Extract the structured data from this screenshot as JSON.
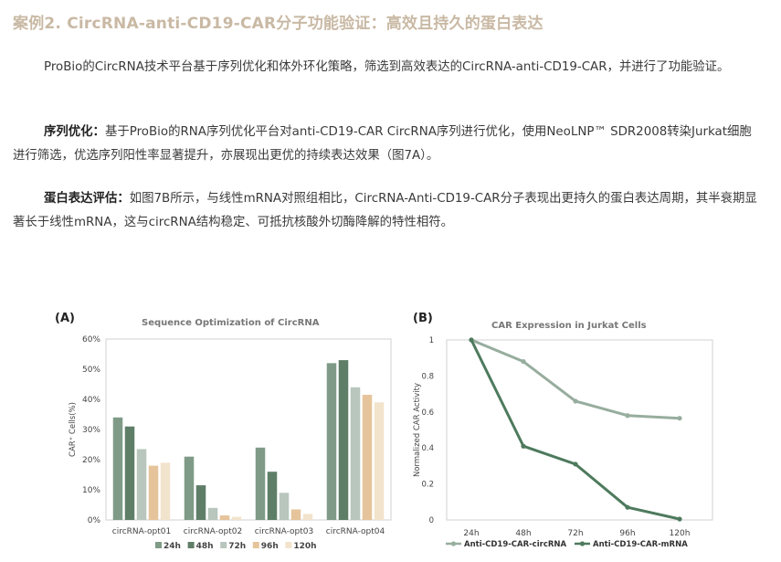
{
  "title": "案例2. CircRNA-anti-CD19-CAR分子功能验证：高效且持久的蛋白表达",
  "paragraphs": {
    "intro": "ProBio的CircRNA技术平台基于序列优化和体外环化策略，筛选到高效表达的CircRNA-anti-CD19-CAR，并进行了功能验证。",
    "seq_label": "序列优化：",
    "seq_text": "基于ProBio的RNA序列优化平台对anti-CD19-CAR CircRNA序列进行优化，使用NeoLNP™ SDR2008转染Jurkat细胞进行筛选，优选序列阳性率显著提升，亦展现出更优的持续表达效果（图7A）。",
    "expr_label": "蛋白表达评估：",
    "expr_text": "如图7B所示，与线性mRNA对照组相比，CircRNA-Anti-CD19-CAR分子表现出更持久的蛋白表达周期，其半衰期显著长于线性mRNA，这与circRNA结构稳定、可抵抗核酸外切酶降解的特性相符。"
  },
  "panels": {
    "a_label": "(A)",
    "b_label": "(B)"
  },
  "chart_data": [
    {
      "type": "bar",
      "title": "Sequence Optimization of CircRNA",
      "ylabel": "CAR⁺ Cells(%)",
      "xlabel": "",
      "ylim": [
        0,
        60
      ],
      "yticks": [
        "0%",
        "10%",
        "20%",
        "30%",
        "40%",
        "50%",
        "60%"
      ],
      "categories": [
        "circRNA-opt01",
        "circRNA-opt02",
        "circRNA-opt03",
        "circRNA-opt04"
      ],
      "series": [
        {
          "name": "24h",
          "color": "#7f9b87",
          "values": [
            34,
            21,
            24,
            52
          ]
        },
        {
          "name": "48h",
          "color": "#5f7e68",
          "values": [
            31,
            11.5,
            16,
            53
          ]
        },
        {
          "name": "72h",
          "color": "#b8c6bd",
          "values": [
            23.5,
            4,
            9,
            44
          ]
        },
        {
          "name": "96h",
          "color": "#e6c49b",
          "values": [
            18,
            1.5,
            3.5,
            41.5
          ]
        },
        {
          "name": "120h",
          "color": "#f2e3cc",
          "values": [
            19,
            1,
            2,
            39
          ]
        }
      ],
      "legend": "bottom"
    },
    {
      "type": "line",
      "title": "CAR Expression in Jurkat Cells",
      "ylabel": "Normalized CAR Activity",
      "xlabel": "",
      "ylim": [
        0,
        1
      ],
      "yticks": [
        "0",
        "0.2",
        "0.4",
        "0.6",
        "0.8",
        "1"
      ],
      "x": [
        "24h",
        "48h",
        "72h",
        "96h",
        "120h"
      ],
      "series": [
        {
          "name": "Anti-CD19-CAR-circRNA",
          "color": "#97ad9e",
          "values": [
            1,
            0.88,
            0.66,
            0.58,
            0.565
          ]
        },
        {
          "name": "Anti-CD19-CAR-mRNA",
          "color": "#4e7a5d",
          "values": [
            1,
            0.41,
            0.31,
            0.07,
            0.005
          ]
        }
      ],
      "legend": "bottom"
    }
  ]
}
